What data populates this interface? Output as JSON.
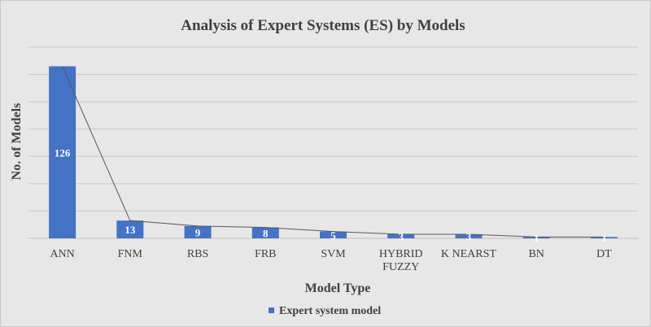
{
  "chart_data": {
    "type": "bar",
    "title": "Analysis of Expert Systems (ES) by Models",
    "xlabel": "Model Type",
    "ylabel": "No. of Models",
    "categories": [
      "ANN",
      "FNM",
      "RBS",
      "FRB",
      "SVM",
      "HYBRID FUZZY",
      "K NEARST",
      "BN",
      "DT"
    ],
    "series": [
      {
        "name": "Expert system model",
        "values": [
          126,
          13,
          9,
          8,
          5,
          3,
          3,
          1,
          1
        ]
      }
    ],
    "ylim": [
      0,
      140
    ],
    "ytick_step": 20,
    "grid": true,
    "legend_position": "bottom",
    "overlay": "line connecting bar tops",
    "colors": {
      "bar": "#4472c4",
      "line": "#595959",
      "grid": "#c8c8c8",
      "plot_bg": "#e7e7e7"
    }
  }
}
